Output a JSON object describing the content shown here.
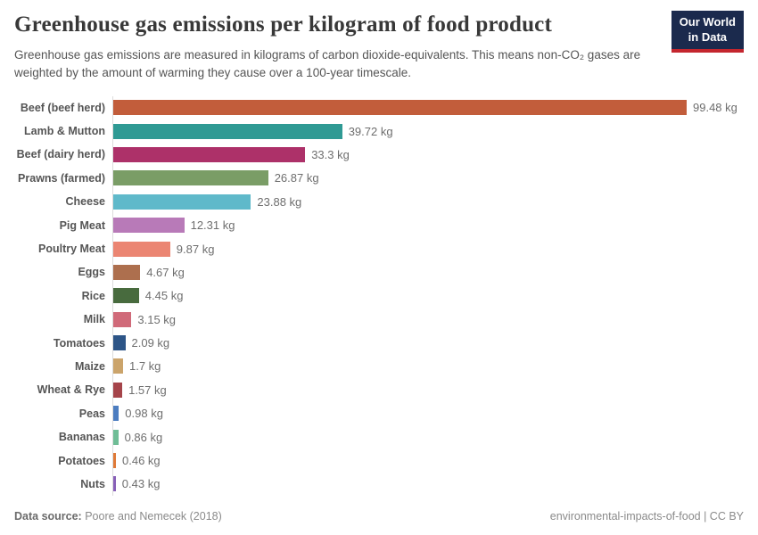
{
  "header": {
    "title": "Greenhouse gas emissions per kilogram of food product",
    "subtitle": "Greenhouse gas emissions are measured in kilograms of carbon dioxide-equivalents. This means non-CO₂ gases are weighted by the amount of warming they cause over a 100-year timescale.",
    "logo": {
      "line1": "Our World",
      "line2": "in Data",
      "bg_color": "#1b2a4d",
      "stripe_color": "#c4262e"
    }
  },
  "chart_data": {
    "type": "bar",
    "orientation": "horizontal",
    "title": "Greenhouse gas emissions per kilogram of food product",
    "xlabel": "",
    "ylabel": "",
    "unit": "kg",
    "grid": false,
    "legend": "none",
    "xlim": [
      0,
      103
    ],
    "categories": [
      "Beef (beef herd)",
      "Lamb & Mutton",
      "Beef (dairy herd)",
      "Prawns (farmed)",
      "Cheese",
      "Pig Meat",
      "Poultry Meat",
      "Eggs",
      "Rice",
      "Milk",
      "Tomatoes",
      "Maize",
      "Wheat & Rye",
      "Peas",
      "Bananas",
      "Potatoes",
      "Nuts"
    ],
    "values": [
      99.48,
      39.72,
      33.3,
      26.87,
      23.88,
      12.31,
      9.87,
      4.67,
      4.45,
      3.15,
      2.09,
      1.7,
      1.57,
      0.98,
      0.86,
      0.46,
      0.43
    ],
    "value_labels": [
      "99.48 kg",
      "39.72 kg",
      "33.3 kg",
      "26.87 kg",
      "23.88 kg",
      "12.31 kg",
      "9.87 kg",
      "4.67 kg",
      "4.45 kg",
      "3.15 kg",
      "2.09 kg",
      "1.7 kg",
      "1.57 kg",
      "0.98 kg",
      "0.86 kg",
      "0.46 kg",
      "0.43 kg"
    ],
    "bar_colors": [
      "#c25d3b",
      "#2f9a94",
      "#ad3169",
      "#7a9d66",
      "#5fb9ca",
      "#b87ab8",
      "#eb8572",
      "#ad6f4e",
      "#486b3e",
      "#d06a79",
      "#2d5587",
      "#cba46b",
      "#a5444a",
      "#4c7dc0",
      "#6fbd96",
      "#df7a37",
      "#8860b8"
    ]
  },
  "footer": {
    "datasource_label": "Data source:",
    "datasource_value": "Poore and Nemecek (2018)",
    "license_text": "environmental-impacts-of-food | CC BY"
  }
}
